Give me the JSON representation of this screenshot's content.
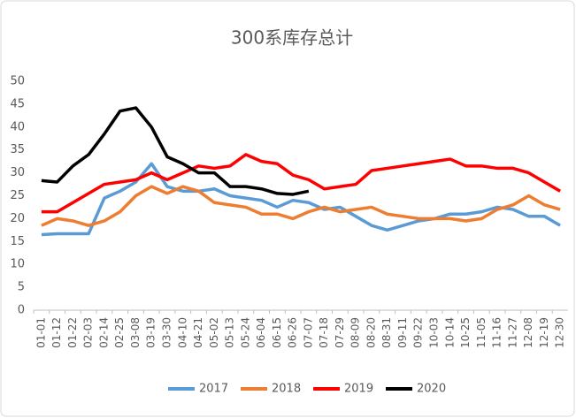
{
  "chart_data": {
    "type": "line",
    "title": "300系库存总计",
    "categories": [
      "01-01",
      "01-12",
      "01-22",
      "02-03",
      "02-14",
      "02-25",
      "03-08",
      "03-19",
      "03-30",
      "04-10",
      "04-21",
      "05-02",
      "05-13",
      "05-24",
      "06-04",
      "06-15",
      "06-26",
      "07-07",
      "07-18",
      "07-29",
      "08-09",
      "08-20",
      "08-31",
      "09-11",
      "09-22",
      "10-03",
      "10-14",
      "10-25",
      "11-05",
      "11-16",
      "11-27",
      "12-08",
      "12-19",
      "12-30"
    ],
    "series": [
      {
        "name": "2017",
        "color": "#5b9bd5",
        "values": [
          16.5,
          16.7,
          16.7,
          16.7,
          24.5,
          26,
          28,
          32,
          27,
          26,
          26,
          26.5,
          25,
          24.5,
          24,
          22.5,
          24,
          23.5,
          22,
          22.5,
          20.5,
          18.5,
          17.5,
          18.5,
          19.5,
          20,
          21,
          21,
          21.5,
          22.5,
          22,
          20.5,
          20.5,
          18.5
        ]
      },
      {
        "name": "2018",
        "color": "#ed7d31",
        "values": [
          18.5,
          20,
          19.5,
          18.5,
          19.5,
          21.5,
          25,
          27,
          25.5,
          27,
          26,
          23.5,
          23,
          22.5,
          21,
          21,
          20,
          21.5,
          22.5,
          21.5,
          22,
          22.5,
          21,
          20.5,
          20,
          20,
          20,
          19.5,
          20,
          22,
          23,
          25,
          23,
          22
        ]
      },
      {
        "name": "2019",
        "color": "#ff0000",
        "values": [
          21.5,
          21.5,
          23.5,
          25.5,
          27.5,
          28,
          28.5,
          30,
          28.5,
          30,
          31.5,
          31,
          31.5,
          34,
          32.5,
          32,
          29.5,
          28.5,
          26.5,
          27,
          27.5,
          30.5,
          31,
          31.5,
          32,
          32.5,
          33,
          31.5,
          31.5,
          31,
          31,
          30,
          28,
          26
        ]
      },
      {
        "name": "2020",
        "color": "#000000",
        "values": [
          28.3,
          28,
          31.5,
          34,
          38.5,
          43.5,
          44.2,
          40,
          33.5,
          32,
          30,
          30,
          27,
          27,
          26.5,
          25.5,
          25.3,
          26,
          null,
          null,
          null,
          null,
          null,
          null,
          null,
          null,
          null,
          null,
          null,
          null,
          null,
          null,
          null,
          null
        ]
      }
    ],
    "ylim": [
      0,
      50
    ],
    "yticks": [
      0,
      5,
      10,
      15,
      20,
      25,
      30,
      35,
      40,
      45,
      50
    ],
    "legend": "bottom"
  }
}
